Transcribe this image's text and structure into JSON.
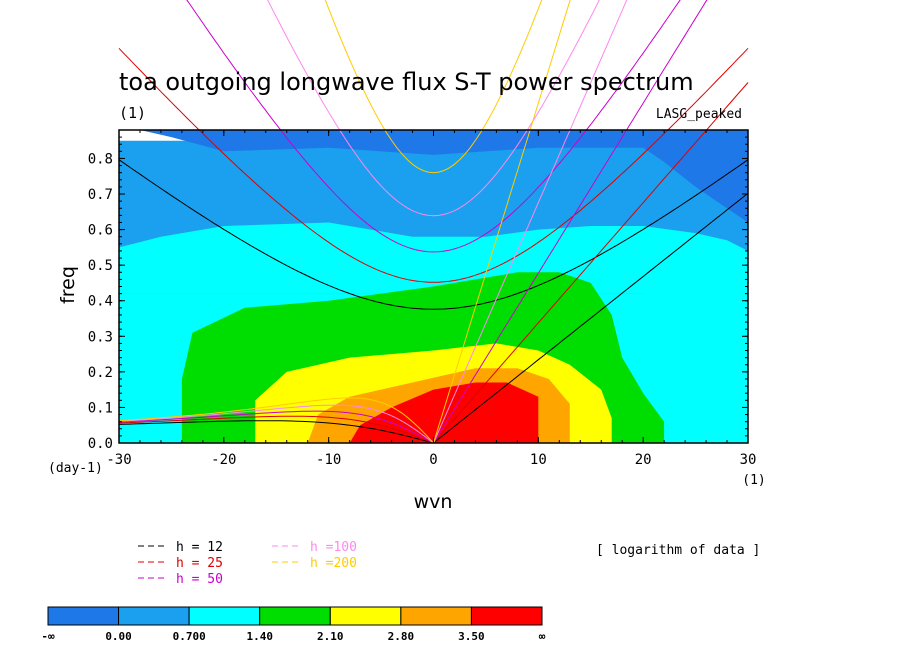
{
  "chart_data": {
    "type": "heatmap",
    "title": "toa outgoing longwave flux S-T power spectrum",
    "title_units": "(1)",
    "top_right_label": "LASG_peaked",
    "xlabel": "wvn",
    "ylabel": "freq",
    "x_unit_label": "(1)",
    "y_unit_label": "(day-1)",
    "xlim": [
      -30,
      30
    ],
    "ylim": [
      0,
      0.85
    ],
    "x_ticks": [
      -30,
      -20,
      -10,
      0,
      10,
      20,
      30
    ],
    "x_tick_labels": [
      "-30",
      "-20",
      "-10",
      "0",
      "10",
      "20",
      "30"
    ],
    "y_ticks": [
      0.0,
      0.1,
      0.2,
      0.3,
      0.4,
      0.5,
      0.6,
      0.7,
      0.8
    ],
    "y_tick_labels": [
      "0.0",
      "0.1",
      "0.2",
      "0.3",
      "0.4",
      "0.5",
      "0.6",
      "0.7",
      "0.8"
    ],
    "note": "[ logarithm of data ]",
    "levels": [
      {
        "label": "0.00",
        "color": "#1f78e8"
      },
      {
        "label": "0.700",
        "color": "#1aa0ee"
      },
      {
        "label": "1.40",
        "color": "#00ffff"
      },
      {
        "label": "2.10",
        "color": "#00dd00"
      },
      {
        "label": "2.80",
        "color": "#ffff00"
      },
      {
        "label": "3.50",
        "color": "#ffa500"
      },
      {
        "label": "∞",
        "color": "#ff0000"
      }
    ],
    "colorbar_first_label": "-∞",
    "contour_regions": [
      {
        "level": 1,
        "outline": [
          [
            -30,
            0.85
          ],
          [
            -30,
            0.0
          ],
          [
            30,
            0.0
          ],
          [
            30,
            0.85
          ]
        ]
      },
      {
        "level": 0,
        "outline": [
          [
            -30,
            0.88
          ],
          [
            30,
            0.88
          ],
          [
            30,
            0.62
          ],
          [
            28,
            0.66
          ],
          [
            25,
            0.72
          ],
          [
            22,
            0.79
          ],
          [
            20,
            0.83
          ],
          [
            10,
            0.83
          ],
          [
            0,
            0.81
          ],
          [
            -10,
            0.83
          ],
          [
            -20,
            0.82
          ],
          [
            -25,
            0.86
          ],
          [
            -28,
            0.88
          ],
          [
            -30,
            0.88
          ]
        ]
      },
      {
        "level": 2,
        "outline": [
          [
            -30,
            0.55
          ],
          [
            -26,
            0.58
          ],
          [
            -20,
            0.61
          ],
          [
            -10,
            0.62
          ],
          [
            -2,
            0.58
          ],
          [
            5,
            0.58
          ],
          [
            10,
            0.6
          ],
          [
            15,
            0.61
          ],
          [
            20,
            0.61
          ],
          [
            25,
            0.59
          ],
          [
            28,
            0.57
          ],
          [
            30,
            0.54
          ],
          [
            30,
            0.11
          ],
          [
            28,
            0.12
          ],
          [
            27,
            0.25
          ],
          [
            27,
            0.35
          ],
          [
            24,
            0.4
          ],
          [
            20,
            0.42
          ],
          [
            15,
            0.42
          ],
          [
            -30,
            0.42
          ]
        ]
      },
      {
        "level": 2,
        "outline": [
          [
            -30,
            0.42
          ],
          [
            30,
            0.42
          ],
          [
            30,
            0.0
          ],
          [
            -30,
            0.0
          ]
        ]
      },
      {
        "level": 3,
        "outline": [
          [
            -24,
            0.0
          ],
          [
            -24,
            0.18
          ],
          [
            -23,
            0.31
          ],
          [
            -18,
            0.38
          ],
          [
            -10,
            0.4
          ],
          [
            0,
            0.44
          ],
          [
            8,
            0.48
          ],
          [
            12,
            0.48
          ],
          [
            15,
            0.45
          ],
          [
            17,
            0.36
          ],
          [
            18,
            0.24
          ],
          [
            20,
            0.14
          ],
          [
            22,
            0.06
          ],
          [
            22,
            0.0
          ]
        ]
      },
      {
        "level": 4,
        "outline": [
          [
            -17,
            0.0
          ],
          [
            -17,
            0.12
          ],
          [
            -14,
            0.2
          ],
          [
            -8,
            0.24
          ],
          [
            0,
            0.26
          ],
          [
            6,
            0.28
          ],
          [
            10,
            0.26
          ],
          [
            13,
            0.22
          ],
          [
            16,
            0.15
          ],
          [
            17,
            0.07
          ],
          [
            17,
            0.0
          ]
        ]
      },
      {
        "level": 5,
        "outline": [
          [
            -12,
            0.0
          ],
          [
            -11,
            0.08
          ],
          [
            -8,
            0.13
          ],
          [
            -2,
            0.17
          ],
          [
            4,
            0.21
          ],
          [
            8,
            0.21
          ],
          [
            11,
            0.18
          ],
          [
            13,
            0.11
          ],
          [
            13,
            0.0
          ]
        ]
      },
      {
        "level": 6,
        "outline": [
          [
            -8,
            0.0
          ],
          [
            -7,
            0.05
          ],
          [
            -4,
            0.1
          ],
          [
            0,
            0.15
          ],
          [
            4,
            0.17
          ],
          [
            7,
            0.17
          ],
          [
            10,
            0.13
          ],
          [
            10,
            0.0
          ]
        ]
      }
    ],
    "legend": [
      {
        "label": "h = 12",
        "color": "#000000"
      },
      {
        "label": "h = 25",
        "color": "#dd0000"
      },
      {
        "label": "h = 50",
        "color": "#cc00cc"
      },
      {
        "label": "h =100",
        "color": "#ff88ee"
      },
      {
        "label": "h =200",
        "color": "#ffcc00"
      }
    ],
    "dispersion_series": [
      {
        "name": "h = 12",
        "color": "#000000",
        "h": 12
      },
      {
        "name": "h = 25",
        "color": "#dd0000",
        "h": 25
      },
      {
        "name": "h = 50",
        "color": "#cc00cc",
        "h": 50
      },
      {
        "name": "h =100",
        "color": "#ff88ee",
        "h": 100
      },
      {
        "name": "h =200",
        "color": "#ffcc00",
        "h": 200
      }
    ],
    "grid": false,
    "legend_placement": "bottom-left"
  }
}
